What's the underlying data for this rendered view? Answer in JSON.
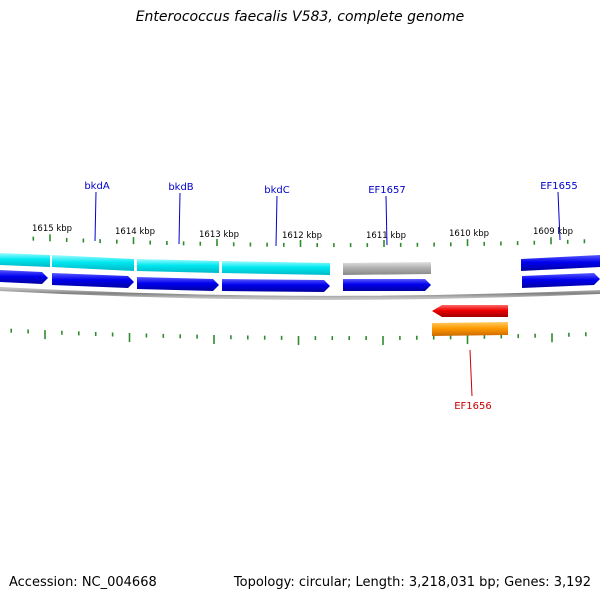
{
  "title": "Enterococcus faecalis V583, complete genome",
  "footer": {
    "accession": "Accession: NC_004668",
    "summary": "Topology: circular; Length: 3,218,031 bp; Genes: 3,192"
  },
  "ruler": [
    {
      "label": "1615 kbp"
    },
    {
      "label": "1614 kbp"
    },
    {
      "label": "1613 kbp"
    },
    {
      "label": "1612 kbp"
    },
    {
      "label": "1611 kbp"
    },
    {
      "label": "1610 kbp"
    },
    {
      "label": "1609 kbp"
    }
  ],
  "gene_labels": [
    {
      "name": "bkdA"
    },
    {
      "name": "bkdB"
    },
    {
      "name": "bkdC"
    },
    {
      "name": "EF1657"
    },
    {
      "name": "EF1655"
    },
    {
      "name": "EF1656"
    }
  ],
  "colors": {
    "label_forward": "#0000cc",
    "label_reverse": "#cc0000",
    "tick": "#2e8b2e",
    "cds_forward": "#0000ee",
    "cds_cyan": "#00e0e8",
    "cds_gray": "#b0b0b0",
    "cds_reverse_red": "#ee0000",
    "cds_reverse_orange": "#ff9900",
    "backbone": "#808080"
  }
}
